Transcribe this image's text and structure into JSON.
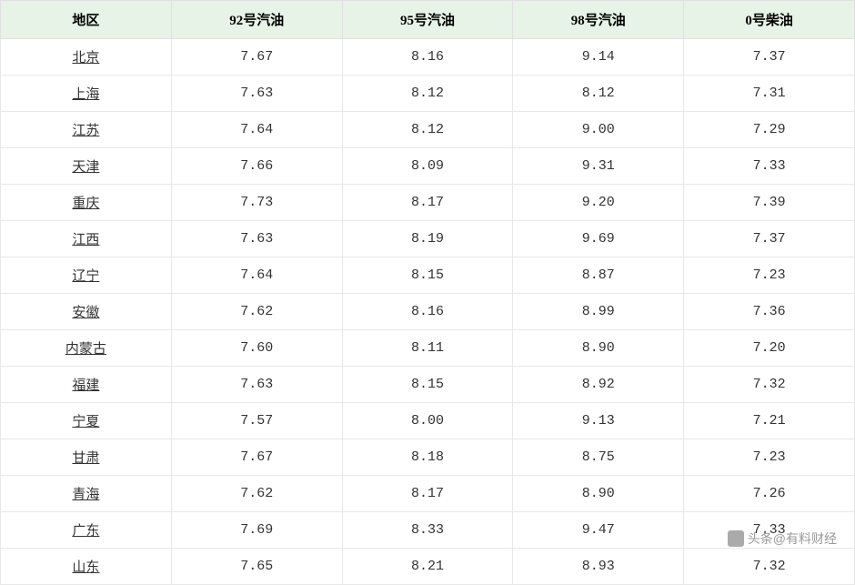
{
  "table": {
    "type": "table",
    "header_bg": "#e6f3e6",
    "border_color": "#e8e8e8",
    "text_color": "#333333",
    "columns": [
      {
        "key": "region",
        "label": "地区",
        "underline": true
      },
      {
        "key": "g92",
        "label": "92号汽油",
        "underline": false
      },
      {
        "key": "g95",
        "label": "95号汽油",
        "underline": false
      },
      {
        "key": "g98",
        "label": "98号汽油",
        "underline": false
      },
      {
        "key": "d0",
        "label": "0号柴油",
        "underline": false
      }
    ],
    "rows": [
      {
        "region": "北京",
        "g92": "7.67",
        "g95": "8.16",
        "g98": "9.14",
        "d0": "7.37"
      },
      {
        "region": "上海",
        "g92": "7.63",
        "g95": "8.12",
        "g98": "8.12",
        "d0": "7.31"
      },
      {
        "region": "江苏",
        "g92": "7.64",
        "g95": "8.12",
        "g98": "9.00",
        "d0": "7.29"
      },
      {
        "region": "天津",
        "g92": "7.66",
        "g95": "8.09",
        "g98": "9.31",
        "d0": "7.33"
      },
      {
        "region": "重庆",
        "g92": "7.73",
        "g95": "8.17",
        "g98": "9.20",
        "d0": "7.39"
      },
      {
        "region": "江西",
        "g92": "7.63",
        "g95": "8.19",
        "g98": "9.69",
        "d0": "7.37"
      },
      {
        "region": "辽宁",
        "g92": "7.64",
        "g95": "8.15",
        "g98": "8.87",
        "d0": "7.23"
      },
      {
        "region": "安徽",
        "g92": "7.62",
        "g95": "8.16",
        "g98": "8.99",
        "d0": "7.36"
      },
      {
        "region": "内蒙古",
        "g92": "7.60",
        "g95": "8.11",
        "g98": "8.90",
        "d0": "7.20"
      },
      {
        "region": "福建",
        "g92": "7.63",
        "g95": "8.15",
        "g98": "8.92",
        "d0": "7.32"
      },
      {
        "region": "宁夏",
        "g92": "7.57",
        "g95": "8.00",
        "g98": "9.13",
        "d0": "7.21"
      },
      {
        "region": "甘肃",
        "g92": "7.67",
        "g95": "8.18",
        "g98": "8.75",
        "d0": "7.23"
      },
      {
        "region": "青海",
        "g92": "7.62",
        "g95": "8.17",
        "g98": "8.90",
        "d0": "7.26"
      },
      {
        "region": "广东",
        "g92": "7.69",
        "g95": "8.33",
        "g98": "9.47",
        "d0": "7.33"
      },
      {
        "region": "山东",
        "g92": "7.65",
        "g95": "8.21",
        "g98": "8.93",
        "d0": "7.32"
      }
    ]
  },
  "watermark": {
    "text": "头条@有料财经"
  }
}
